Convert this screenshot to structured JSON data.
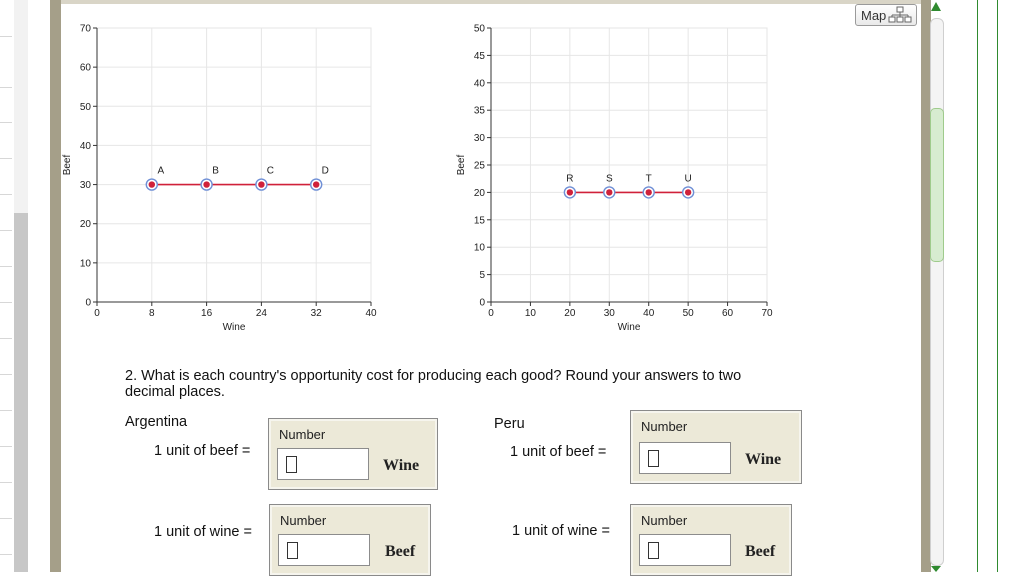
{
  "map_button": {
    "label": "Map",
    "icon": "sitemap-icon"
  },
  "charts": [
    {
      "ylabel": "Beef",
      "xlabel": "Wine",
      "xticks": [
        "0",
        "8",
        "16",
        "24",
        "32",
        "40"
      ],
      "yticks": [
        "0",
        "10",
        "20",
        "30",
        "40",
        "50",
        "60",
        "70"
      ]
    },
    {
      "ylabel": "Beef",
      "xlabel": "Wine",
      "xticks": [
        "0",
        "10",
        "20",
        "30",
        "40",
        "50",
        "60",
        "70"
      ],
      "yticks": [
        "0",
        "5",
        "10",
        "15",
        "20",
        "25",
        "30",
        "35",
        "40",
        "45",
        "50"
      ]
    }
  ],
  "chart_data": [
    {
      "type": "line",
      "xlabel": "Wine",
      "ylabel": "Beef",
      "xlim": [
        0,
        40
      ],
      "ylim": [
        0,
        70
      ],
      "grid": true,
      "series": [
        {
          "points": [
            {
              "label": "A",
              "x": 8,
              "y": 30
            },
            {
              "label": "B",
              "x": 16,
              "y": 30
            },
            {
              "label": "C",
              "x": 24,
              "y": 30
            },
            {
              "label": "D",
              "x": 32,
              "y": 30
            }
          ]
        }
      ],
      "colors": {
        "line": "#d0213a",
        "point_fill": "#d0213a",
        "point_ring": "#6f8fd6"
      }
    },
    {
      "type": "line",
      "xlabel": "Wine",
      "ylabel": "Beef",
      "xlim": [
        0,
        70
      ],
      "ylim": [
        0,
        50
      ],
      "grid": true,
      "series": [
        {
          "points": [
            {
              "label": "R",
              "x": 20,
              "y": 20
            },
            {
              "label": "S",
              "x": 30,
              "y": 20
            },
            {
              "label": "T",
              "x": 40,
              "y": 20
            },
            {
              "label": "U",
              "x": 50,
              "y": 20
            }
          ]
        }
      ],
      "colors": {
        "line": "#d0213a",
        "point_fill": "#d0213a",
        "point_ring": "#6f8fd6"
      }
    }
  ],
  "question": {
    "text": "2. What is each country's opportunity cost for producing each good? Round your answers to two decimal places."
  },
  "argentina": {
    "name": "Argentina",
    "beef_label": "1 unit of beef =",
    "beef_box": {
      "caption": "Number",
      "value": "",
      "unit": "Wine"
    },
    "wine_label": "1 unit of wine =",
    "wine_box": {
      "caption": "Number",
      "value": "",
      "unit": "Beef"
    }
  },
  "peru": {
    "name": "Peru",
    "beef_label": "1 unit of beef =",
    "beef_box": {
      "caption": "Number",
      "value": "",
      "unit": "Wine"
    },
    "wine_label": "1 unit of wine =",
    "wine_box": {
      "caption": "Number",
      "value": "",
      "unit": "Beef"
    }
  }
}
